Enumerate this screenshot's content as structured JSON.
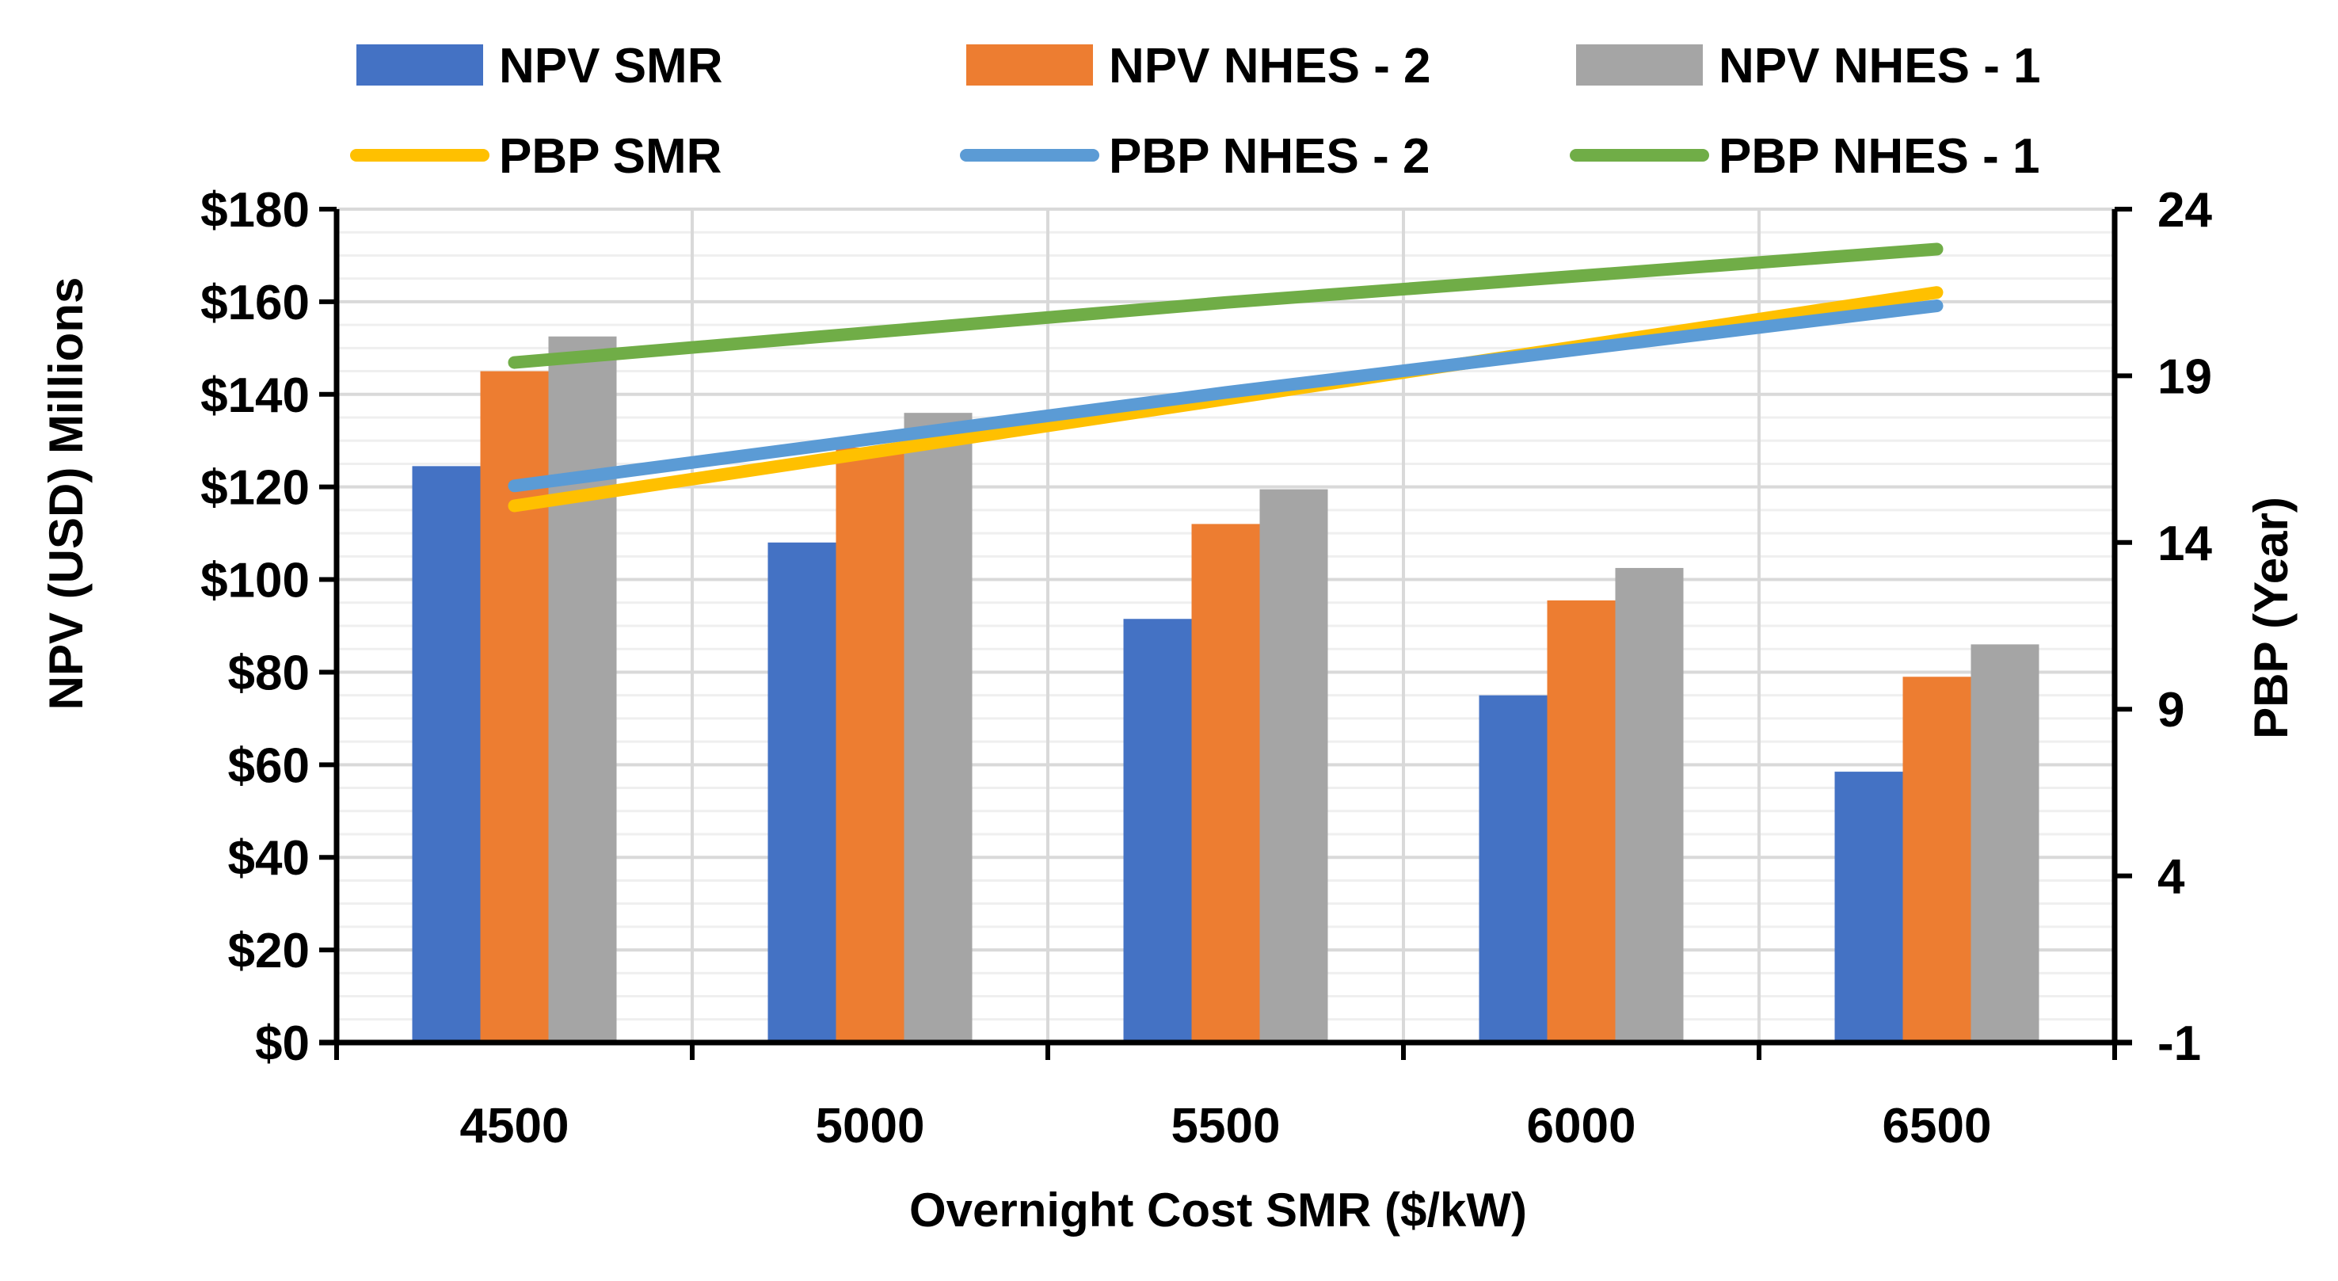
{
  "chart_data": {
    "type": "bar",
    "x_categories": [
      "4500",
      "5000",
      "5500",
      "6000",
      "6500"
    ],
    "xlabel": "Overnight Cost SMR ($/kW)",
    "ylabel_left": "NPV (USD)  Millions",
    "ylabel_right": "PBP (Year)",
    "y_left_range": [
      0,
      180
    ],
    "y_left_ticks": [
      "$0",
      "$20",
      "$40",
      "$60",
      "$80",
      "$100",
      "$120",
      "$140",
      "$160",
      "$180"
    ],
    "y_right_range": [
      -1,
      24
    ],
    "y_right_ticks": [
      "-1",
      "4",
      "9",
      "14",
      "19",
      "24"
    ],
    "grid": true,
    "legend_position": "top",
    "bar_series": [
      {
        "name": "NPV SMR",
        "color": "#4472C4",
        "values": [
          124.5,
          108,
          91.5,
          75,
          58.5
        ]
      },
      {
        "name": "NPV NHES - 2",
        "color": "#ED7D31",
        "values": [
          145,
          128.5,
          112,
          95.5,
          79
        ]
      },
      {
        "name": "NPV NHES - 1",
        "color": "#A5A5A5",
        "values": [
          152.5,
          136,
          119.5,
          102.5,
          86
        ]
      }
    ],
    "line_series": [
      {
        "name": "PBP SMR",
        "color": "#FFC000",
        "values": [
          15.1,
          16.7,
          18.3,
          19.9,
          21.5
        ]
      },
      {
        "name": "PBP NHES - 2",
        "color": "#5B9BD5",
        "values": [
          15.7,
          17.1,
          18.5,
          19.8,
          21.1
        ]
      },
      {
        "name": "PBP NHES - 1",
        "color": "#70AD47",
        "values": [
          19.4,
          20.3,
          21.2,
          22,
          22.8
        ]
      }
    ]
  }
}
